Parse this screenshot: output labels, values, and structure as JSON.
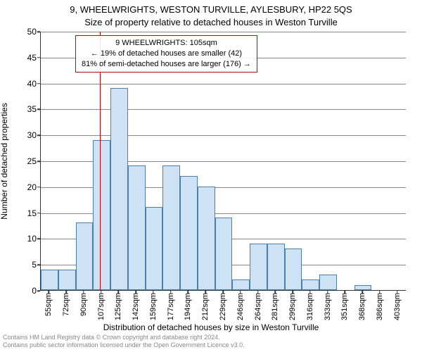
{
  "title_main": "9, WHEELWRIGHTS, WESTON TURVILLE, AYLESBURY, HP22 5QS",
  "title_sub": "Size of property relative to detached houses in Weston Turville",
  "y_axis_label": "Number of detached properties",
  "x_axis_label": "Distribution of detached houses by size in Weston Turville",
  "footnote_1": "Contains HM Land Registry data © Crown copyright and database right 2024.",
  "footnote_2": "Contains public sector information licensed under the Open Government Licence v3.0.",
  "annotation": {
    "line1": "9 WHEELWRIGHTS: 105sqm",
    "line2": "← 19% of detached houses are smaller (42)",
    "line3": "81% of semi-detached houses are larger (176) →",
    "border_color": "#cc0000"
  },
  "chart": {
    "type": "histogram",
    "background_color": "#ffffff",
    "grid_color": "#888888",
    "axis_color": "#333333",
    "bar_fill": "#cde2f5",
    "bar_outline": "#4b7fb0",
    "x_start": 46,
    "x_step": 17.4,
    "bin_count": 21,
    "values": [
      4,
      4,
      13,
      29,
      39,
      24,
      16,
      24,
      22,
      20,
      14,
      2,
      9,
      9,
      8,
      2,
      3,
      0,
      1,
      0,
      0
    ],
    "ylim": [
      0,
      50
    ],
    "ytick_step": 5,
    "xtick_labels": [
      "55sqm",
      "72sqm",
      "90sqm",
      "107sqm",
      "125sqm",
      "142sqm",
      "159sqm",
      "177sqm",
      "194sqm",
      "212sqm",
      "229sqm",
      "246sqm",
      "264sqm",
      "281sqm",
      "299sqm",
      "316sqm",
      "333sqm",
      "351sqm",
      "368sqm",
      "386sqm",
      "403sqm"
    ],
    "marker": {
      "x_value": 105,
      "color": "#cc0000"
    },
    "label_fontsize": 12,
    "tick_fontsize": 12,
    "title_fontsize": 13
  }
}
